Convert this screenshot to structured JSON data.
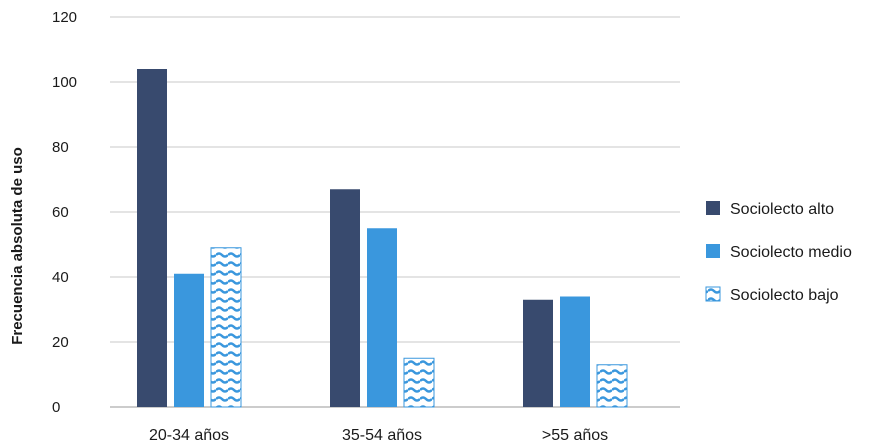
{
  "chart_data": {
    "type": "bar",
    "title": "",
    "xlabel": "",
    "ylabel": "Frecuencia absoluta de uso",
    "ylim": [
      0,
      120
    ],
    "yticks": [
      0,
      20,
      40,
      60,
      80,
      100,
      120
    ],
    "grid": true,
    "legend_position": "right",
    "categories": [
      "20-34 años",
      "35-54 años",
      ">55 años"
    ],
    "series": [
      {
        "name": "Sociolecto alto",
        "values": [
          104,
          67,
          33
        ],
        "color": "#384a6e",
        "pattern": "solid"
      },
      {
        "name": "Sociolecto medio",
        "values": [
          41,
          55,
          34
        ],
        "color": "#3a97dd",
        "pattern": "solid"
      },
      {
        "name": "Sociolecto bajo",
        "values": [
          49,
          15,
          13
        ],
        "color": "#3a97dd",
        "pattern": "wave"
      }
    ]
  }
}
